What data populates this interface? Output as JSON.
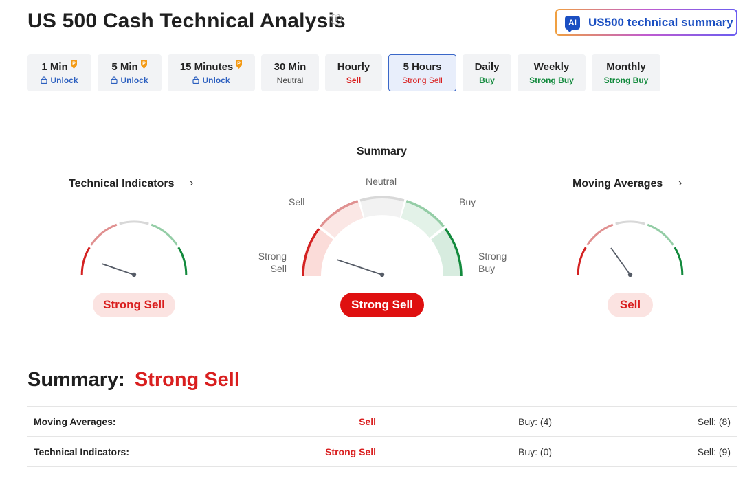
{
  "page_title": "US 500 Cash Technical Analysis",
  "ai_button": {
    "badge": "AI",
    "label": "US500 technical summary"
  },
  "tabs": [
    {
      "label": "1 Min",
      "sub": "Unlock",
      "pro": true
    },
    {
      "label": "5 Min",
      "sub": "Unlock",
      "pro": true
    },
    {
      "label": "15 Minutes",
      "sub": "Unlock",
      "pro": true
    },
    {
      "label": "30 Min",
      "sub": "Neutral",
      "pro": false
    },
    {
      "label": "Hourly",
      "sub": "Sell",
      "pro": false
    },
    {
      "label": "5 Hours",
      "sub": "Strong Sell",
      "pro": false,
      "active": true
    },
    {
      "label": "Daily",
      "sub": "Buy",
      "pro": false
    },
    {
      "label": "Weekly",
      "sub": "Strong Buy",
      "pro": false
    },
    {
      "label": "Monthly",
      "sub": "Strong Buy",
      "pro": false
    }
  ],
  "gauges": {
    "technical": {
      "title": "Technical Indicators",
      "value": "Strong Sell"
    },
    "summary": {
      "title": "Summary",
      "value": "Strong Sell",
      "labels": {
        "neutral": "Neutral",
        "sell": "Sell",
        "buy": "Buy",
        "strong_sell_1": "Strong",
        "strong_sell_2": "Sell",
        "strong_buy_1": "Strong",
        "strong_buy_2": "Buy"
      }
    },
    "moving": {
      "title": "Moving Averages",
      "value": "Sell"
    }
  },
  "summary": {
    "label": "Summary:",
    "value": "Strong Sell"
  },
  "table": {
    "rows": [
      {
        "label": "Moving Averages:",
        "status": "Sell",
        "buy": "Buy: (4)",
        "sell": "Sell: (8)"
      },
      {
        "label": "Technical Indicators:",
        "status": "Strong Sell",
        "buy": "Buy: (0)",
        "sell": "Sell: (9)"
      }
    ]
  },
  "colors": {
    "sell": "#d91f1f",
    "buy": "#138a3d",
    "link": "#2c5fbf",
    "active_tab_border": "#3a67c8"
  }
}
